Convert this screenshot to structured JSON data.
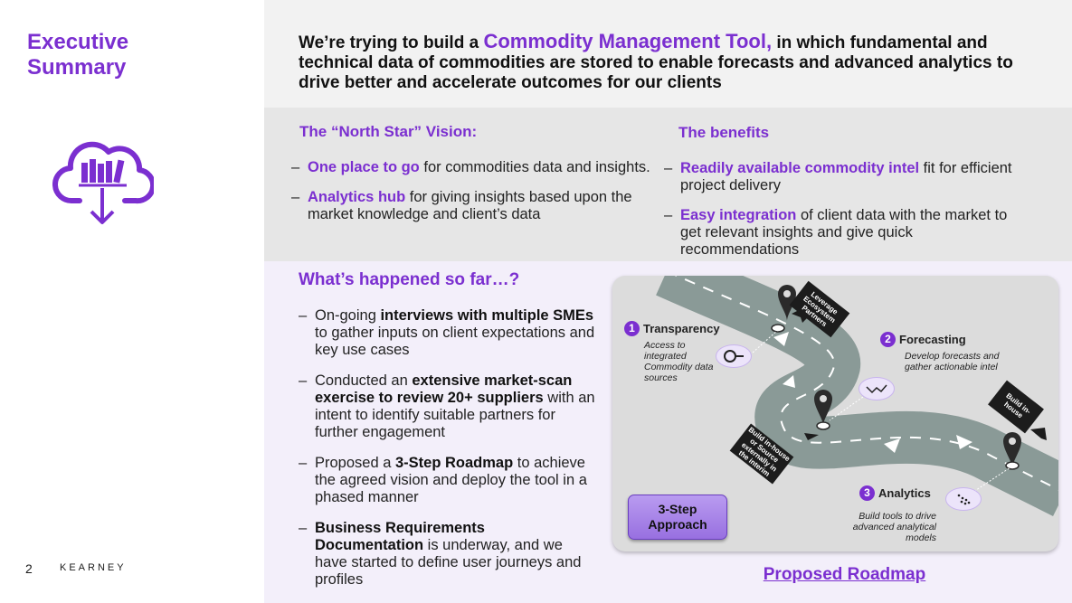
{
  "sidebar": {
    "title": "Executive Summary",
    "icon": "cloud-download-library-icon",
    "page_number": "2",
    "brand": "KEARNEY"
  },
  "colors": {
    "accent": "#7b2fd0",
    "band_light": "#f2f2f2",
    "band_mid": "#e6e6e6",
    "band_lavender": "#f3effa"
  },
  "headline": {
    "lead": "We’re trying to build a ",
    "accent": "Commodity Management Tool,",
    "rest": " in which fundamental and technical data of commodities are stored to enable forecasts and advanced analytics to drive better and accelerate outcomes for our clients"
  },
  "vision": {
    "title": "The “North Star” Vision:",
    "items": [
      {
        "em": "One place to go",
        "text": " for commodities data and insights."
      },
      {
        "em": "Analytics hub",
        "text": " for giving insights based upon the market knowledge and client’s data"
      }
    ]
  },
  "benefits": {
    "title": "The benefits",
    "items": [
      {
        "em": "Readily available commodity intel",
        "text": " fit for efficient project delivery"
      },
      {
        "em": "Easy integration",
        "text": " of client data with the market to get relevant insights and give quick recommendations"
      }
    ]
  },
  "happened": {
    "title": "What’s happened so far…?",
    "items": [
      {
        "pre": "On-going ",
        "bold": "interviews with multiple SMEs",
        "post": " to gather inputs on client expectations and key use cases"
      },
      {
        "pre": "Conducted an ",
        "bold": "extensive market-scan exercise to review 20+ suppliers",
        "post": " with an intent to identify suitable partners for further engagement"
      },
      {
        "pre": "Proposed a ",
        "bold": "3-Step Roadmap",
        "post": " to achieve the agreed vision and deploy the tool in a phased manner"
      },
      {
        "pre": "",
        "bold": "Business Requirements Documentation",
        "post": " is underway, and we have started to define user journeys and profiles"
      }
    ]
  },
  "roadmap": {
    "steps": [
      {
        "num": "1",
        "title": "Transparency",
        "desc": "Access to integrated Commodity data sources",
        "icon": "magnifier-icon"
      },
      {
        "num": "2",
        "title": "Forecasting",
        "desc": "Develop forecasts and gather actionable intel",
        "icon": "trend-chart-icon"
      },
      {
        "num": "3",
        "title": "Analytics",
        "desc": "Build tools to drive advanced analytical models",
        "icon": "scatter-chart-icon"
      }
    ],
    "signs": {
      "leverage": "Leverage Ecosystem Partners",
      "build_inhouse": "Build in-house",
      "build_source": "Build in-house or Source externally in the interim"
    },
    "approach_label": "3-Step Approach",
    "link_label": "Proposed Roadmap"
  }
}
